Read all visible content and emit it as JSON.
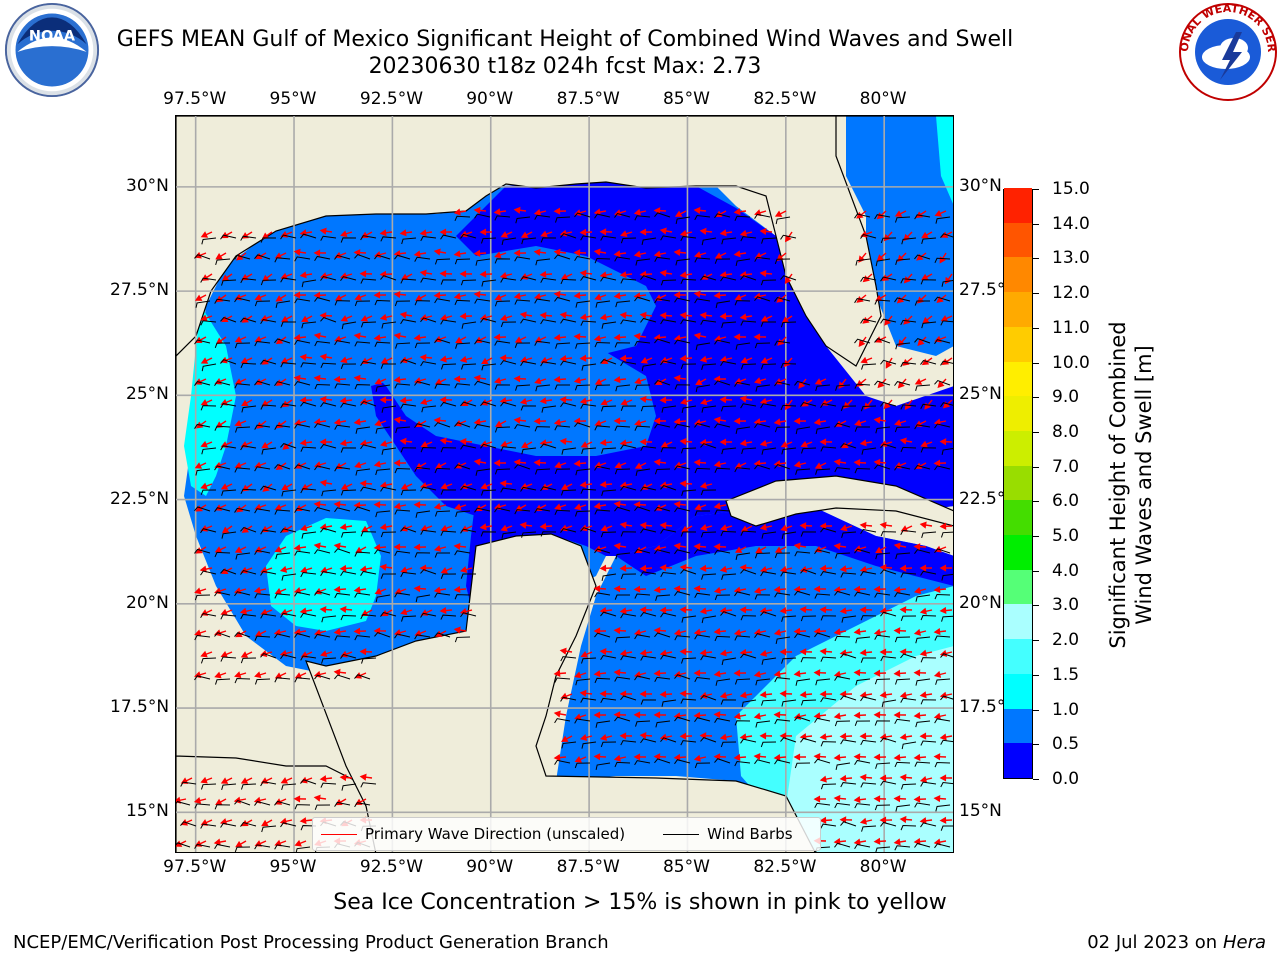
{
  "header": {
    "title_line1": "GEFS MEAN Gulf of Mexico Significant Height of Combined Wind Waves and Swell",
    "title_line2": "20230630 t18z 024h fcst   Max: 2.73",
    "left_logo_text": "NOAA",
    "right_logo_text": "NATIONAL WEATHER SERVICE"
  },
  "map": {
    "lon_ticks": [
      "97.5°W",
      "95°W",
      "92.5°W",
      "90°W",
      "87.5°W",
      "85°W",
      "82.5°W",
      "80°W"
    ],
    "lat_ticks": [
      "30°N",
      "27.5°N",
      "25°N",
      "22.5°N",
      "20°N",
      "17.5°N",
      "15°N"
    ],
    "lon_values": [
      -97.5,
      -95,
      -92.5,
      -90,
      -87.5,
      -85,
      -82.5,
      -80
    ],
    "lat_values": [
      30,
      27.5,
      25,
      22.5,
      20,
      17.5,
      15
    ],
    "lon_range": [
      -98,
      -78.2
    ],
    "lat_range": [
      14,
      31.7
    ],
    "land_color": "#efedda",
    "grid": true,
    "max_value": 2.73
  },
  "legend": {
    "wave_label": "Primary Wave Direction (unscaled)",
    "wave_color": "#ff0000",
    "barb_label": "Wind Barbs",
    "barb_color": "#000000"
  },
  "colorbar": {
    "title_line1": "Significant Height of Combined",
    "title_line2": "Wind Waves and Swell [m]",
    "tick_labels": [
      "0.0",
      "0.5",
      "1.0",
      "1.5",
      "2.0",
      "3.0",
      "4.0",
      "5.0",
      "6.0",
      "7.0",
      "8.0",
      "9.0",
      "10.0",
      "11.0",
      "12.0",
      "13.0",
      "14.0",
      "15.0"
    ],
    "colors": [
      "#0000ff",
      "#0077ff",
      "#00ffff",
      "#44ffff",
      "#aaffff",
      "#55ff77",
      "#00ee00",
      "#44dd00",
      "#99dd00",
      "#ccee00",
      "#eeee00",
      "#ffee00",
      "#ffcc00",
      "#ffaa00",
      "#ff8800",
      "#ff5500",
      "#ff2200"
    ]
  },
  "footer": {
    "ice_note": "Sea Ice Concentration > 15% is shown in pink to yellow",
    "credit": "NCEP/EMC/Verification Post Processing Product Generation Branch",
    "date_prefix": "02 Jul 2023 on ",
    "machine": "Hera"
  }
}
